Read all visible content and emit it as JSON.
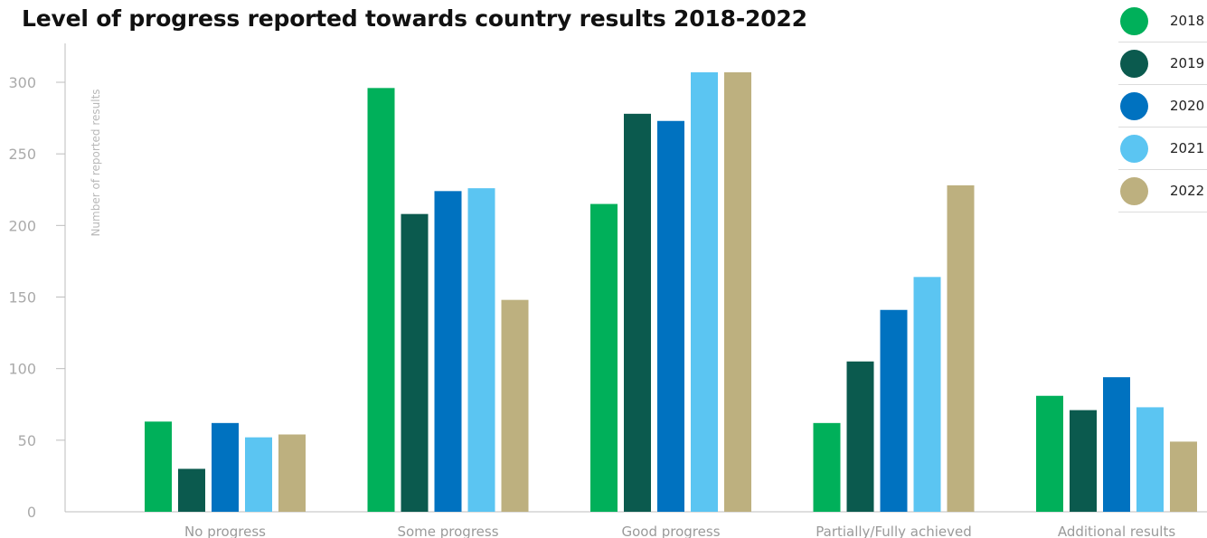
{
  "chart_data": {
    "type": "bar",
    "title": "Level of progress reported towards country results 2018-2022",
    "ylabel": "Number of reported results",
    "xlabel": "",
    "ylim": [
      0,
      320
    ],
    "yticks": [
      0,
      50,
      100,
      150,
      200,
      250,
      300
    ],
    "grid": false,
    "legend_position": "top-right",
    "categories": [
      "No progress",
      "Some progress",
      "Good progress",
      "Partially/Fully achieved",
      "Additional results"
    ],
    "series": [
      {
        "name": "2018",
        "color": "#00b05a",
        "values": [
          63,
          296,
          215,
          62,
          81
        ]
      },
      {
        "name": "2019",
        "color": "#0b5a4e",
        "values": [
          30,
          208,
          278,
          105,
          71
        ]
      },
      {
        "name": "2020",
        "color": "#0072c0",
        "values": [
          62,
          224,
          273,
          141,
          94
        ]
      },
      {
        "name": "2021",
        "color": "#5bc5f2",
        "values": [
          52,
          226,
          307,
          164,
          73
        ]
      },
      {
        "name": "2022",
        "color": "#bdb07f",
        "values": [
          54,
          148,
          307,
          228,
          49
        ]
      }
    ]
  }
}
